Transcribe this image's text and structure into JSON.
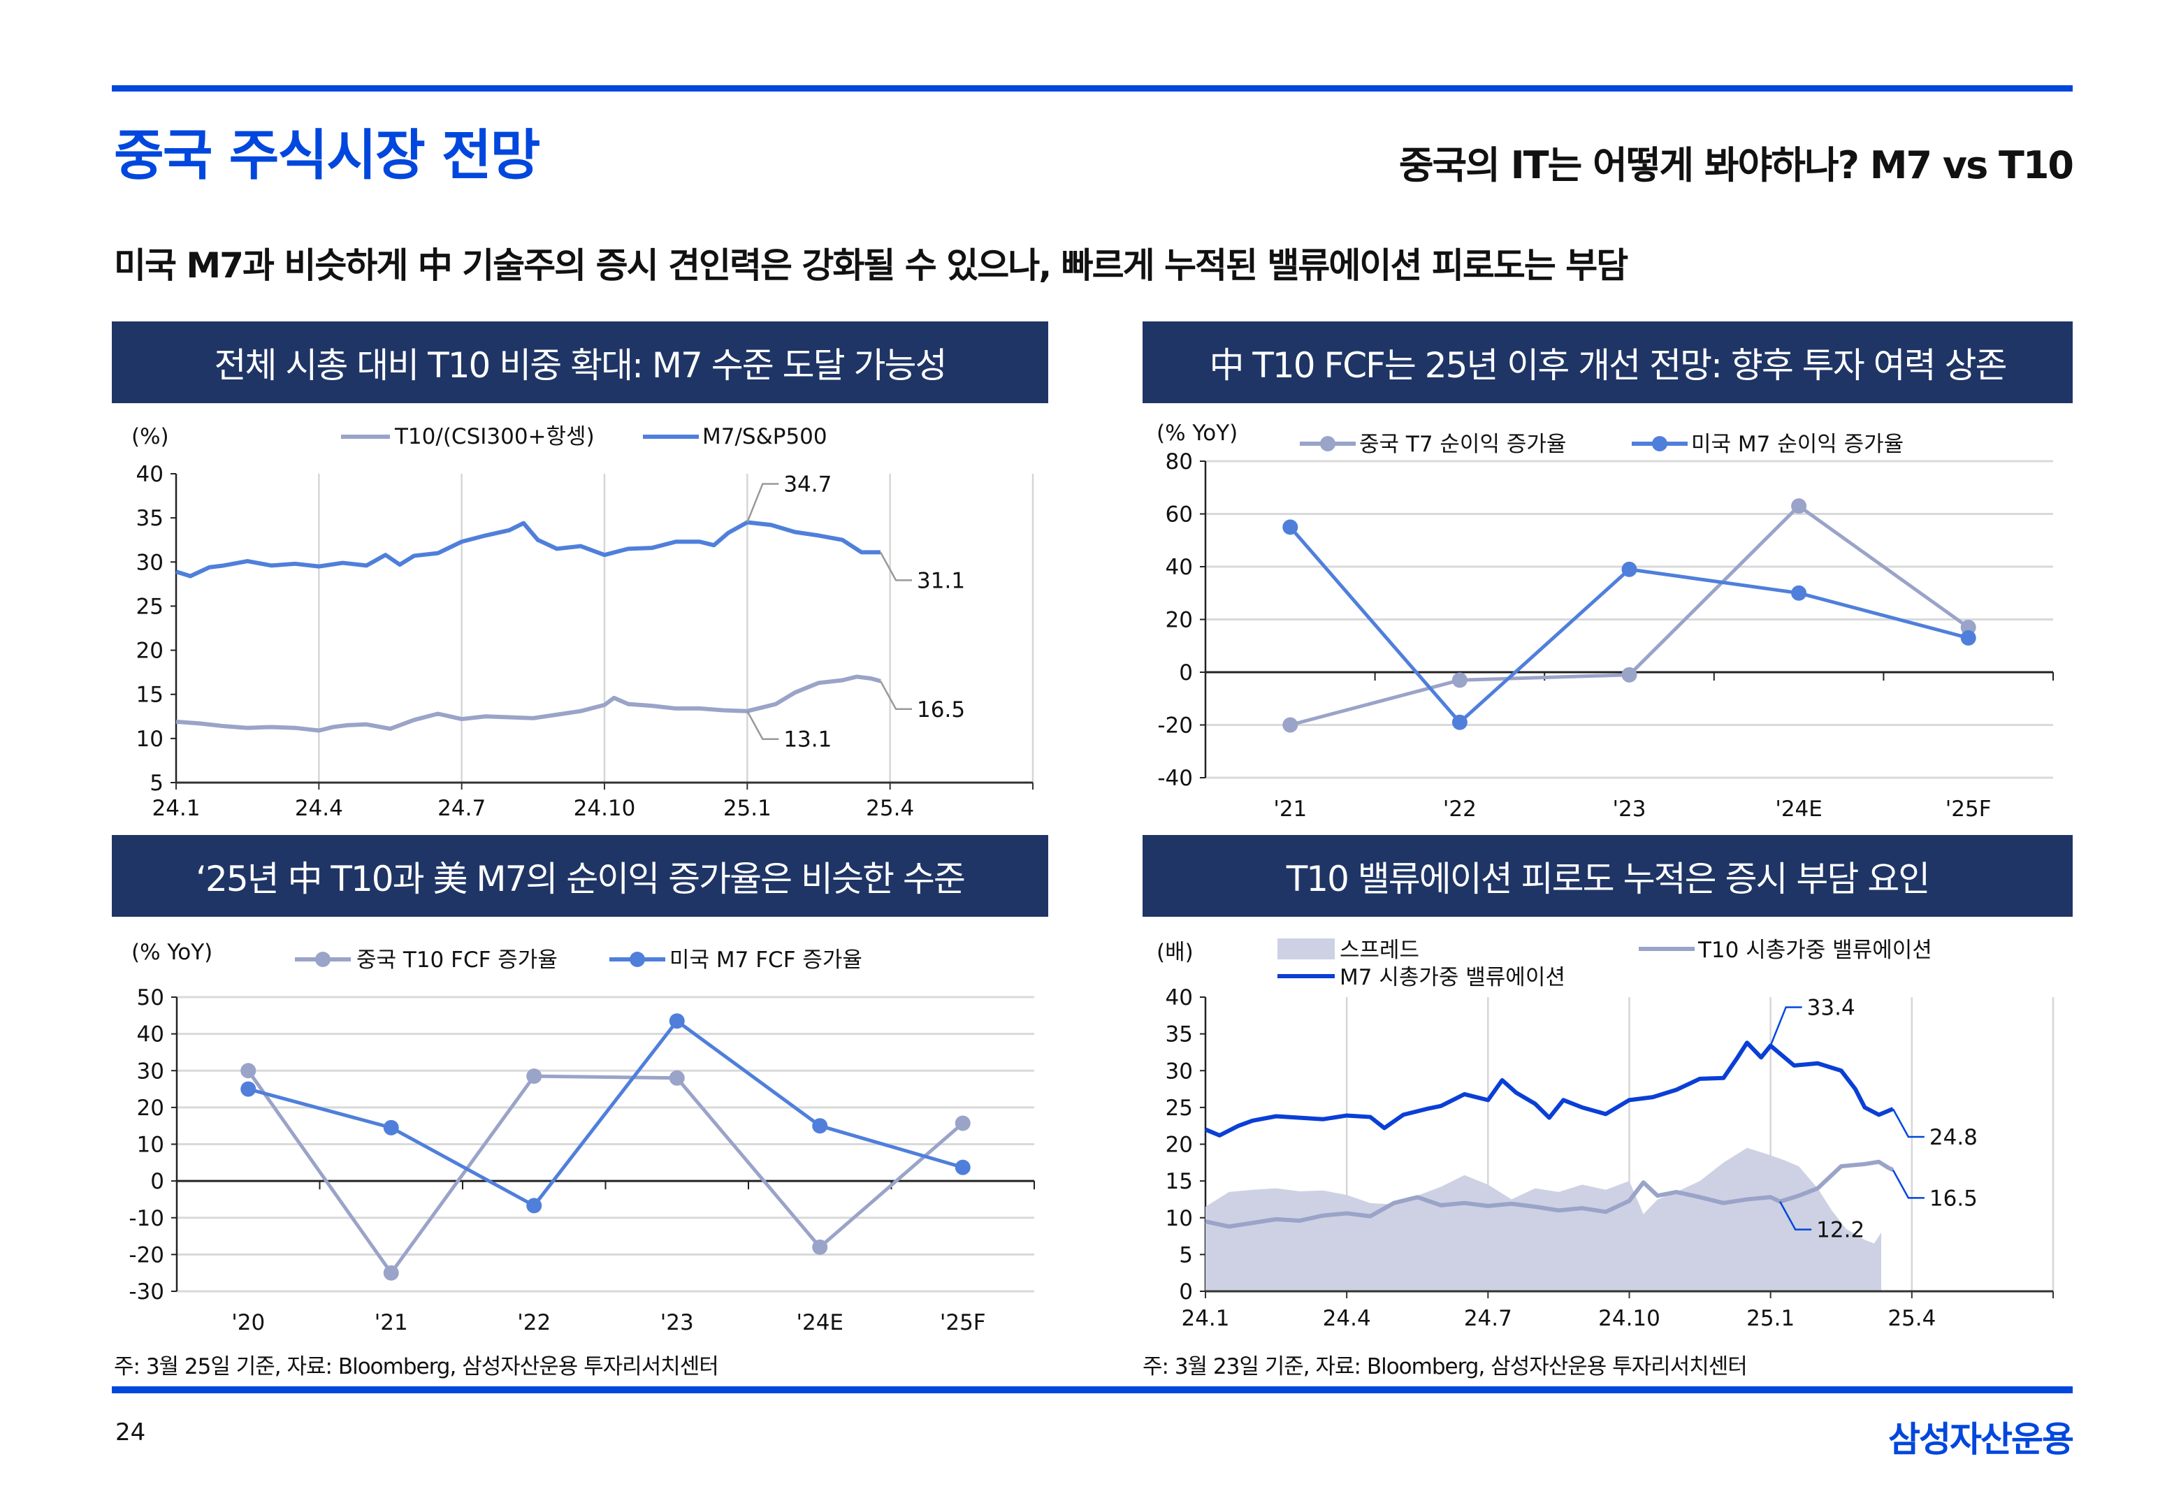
{
  "header": {
    "title": "중국 주식시장 전망",
    "subtitle": "중국의 IT는 어떻게 봐야하나? M7 vs T10",
    "headline": "미국 M7과 비슷하게 中 기술주의 증시 견인력은 강화될 수 있으나, 빠르게 누적된 밸류에이션 피로도는 부담"
  },
  "sections": {
    "top_left": "전체 시총 대비 T10 비중 확대: M7 수준 도달 가능성",
    "top_right": "中 T10 FCF는 25년 이후 개선 전망: 향후 투자 여력 상존",
    "bottom_left": "‘25년 中 T10과 美 M7의 순이익 증가율은 비슷한 수준",
    "bottom_right": "T10 밸류에이션 피로도 누적은 증시 부담 요인"
  },
  "footer": {
    "note_left": "주: 3월 25일 기준, 자료: Bloomberg, 삼성자산운용 투자리서치센터",
    "note_right": "주: 3월 23일 기준, 자료: Bloomberg, 삼성자산운용 투자리서치센터",
    "page_number": "24",
    "brand": "삼성자산운용"
  },
  "colors": {
    "brand_blue": "#0047DD",
    "section_navy": "#1F3566",
    "series_blue": "#4F7FDB",
    "series_gray": "#9AA3C8",
    "m7_dark_blue": "#0A3FD6",
    "spread_fill": "#CDD1E3"
  },
  "chart_data": [
    {
      "id": "share_of_market_cap",
      "type": "line",
      "unit_label": "(%)",
      "x_ticks": [
        "24.1",
        "24.4",
        "24.7",
        "24.10",
        "25.1",
        "25.4"
      ],
      "x_range": [
        "2024-01",
        "2025-06"
      ],
      "ylim": [
        5,
        40
      ],
      "y_ticks": [
        5,
        10,
        15,
        20,
        25,
        30,
        35,
        40
      ],
      "grid": "vertical",
      "legend": "top-center",
      "series": [
        {
          "name": "T10/(CSI300+항셍)",
          "color": "gray",
          "x": [
            0,
            0.5,
            1,
            1.5,
            2,
            2.5,
            3,
            3.3,
            3.6,
            4,
            4.5,
            5,
            5.5,
            6,
            6.5,
            7,
            7.5,
            8,
            8.5,
            9,
            9.2,
            9.5,
            10,
            10.5,
            11,
            11.5,
            12,
            12.3,
            12.6,
            13,
            13.5,
            14,
            14.3,
            14.6,
            14.8
          ],
          "values": [
            11.9,
            11.7,
            11.4,
            11.2,
            11.3,
            11.2,
            10.9,
            11.3,
            11.5,
            11.6,
            11.1,
            12.1,
            12.8,
            12.2,
            12.5,
            12.4,
            12.3,
            12.7,
            13.1,
            13.8,
            14.6,
            13.9,
            13.7,
            13.4,
            13.4,
            13.2,
            13.1,
            13.5,
            13.9,
            15.2,
            16.3,
            16.6,
            17.0,
            16.8,
            16.5
          ],
          "annotations": [
            {
              "label": "13.1",
              "x": 12.1
            },
            {
              "label": "16.5",
              "x": 14.8
            }
          ]
        },
        {
          "name": "M7/S&P500",
          "color": "blue",
          "x": [
            0,
            0.3,
            0.7,
            1,
            1.5,
            2,
            2.5,
            3,
            3.5,
            4,
            4.4,
            4.7,
            5,
            5.5,
            6,
            6.5,
            7,
            7.3,
            7.6,
            8,
            8.5,
            9,
            9.5,
            10,
            10.5,
            11,
            11.3,
            11.6,
            12,
            12.5,
            13,
            13.5,
            14,
            14.4,
            14.8
          ],
          "values": [
            28.9,
            28.4,
            29.4,
            29.6,
            30.1,
            29.6,
            29.8,
            29.5,
            29.9,
            29.6,
            30.8,
            29.7,
            30.7,
            31.0,
            32.3,
            33.0,
            33.6,
            34.4,
            32.5,
            31.5,
            31.8,
            30.8,
            31.5,
            31.6,
            32.3,
            32.3,
            31.9,
            33.3,
            34.5,
            34.2,
            33.4,
            33.0,
            32.5,
            31.1,
            31.1
          ],
          "annotations": [
            {
              "label": "34.7",
              "x": 12.2
            },
            {
              "label": "31.1",
              "x": 14.8
            }
          ]
        }
      ]
    },
    {
      "id": "net_income_growth",
      "type": "line",
      "unit_label": "(% YoY)",
      "categories": [
        "'21",
        "'22",
        "'23",
        "'24E",
        "'25F"
      ],
      "ylim": [
        -40,
        80
      ],
      "y_ticks": [
        -40,
        -20,
        0,
        20,
        40,
        60,
        80
      ],
      "grid": "horizontal",
      "legend": "top-center",
      "series": [
        {
          "name": "중국 T7 순이익 증가율",
          "color": "gray",
          "values": [
            -20,
            -3,
            -1,
            63,
            17
          ]
        },
        {
          "name": "미국 M7 순이익 증가율",
          "color": "blue",
          "values": [
            55,
            -19,
            39,
            30,
            13
          ]
        }
      ]
    },
    {
      "id": "fcf_growth",
      "type": "line",
      "unit_label": "(% YoY)",
      "categories": [
        "'20",
        "'21",
        "'22",
        "'23",
        "'24E",
        "'25F"
      ],
      "ylim": [
        -30,
        50
      ],
      "y_ticks": [
        -30,
        -20,
        -10,
        0,
        10,
        20,
        30,
        40,
        50
      ],
      "grid": "horizontal",
      "legend": "top-center",
      "series": [
        {
          "name": "중국 T10 FCF 증가율",
          "color": "gray",
          "values": [
            30,
            -25,
            28.5,
            28,
            -18,
            15.7
          ]
        },
        {
          "name": "미국 M7 FCF 증가율",
          "color": "blue",
          "values": [
            25,
            14.5,
            -6.7,
            43.5,
            15,
            3.7
          ]
        }
      ]
    },
    {
      "id": "valuation",
      "type": "area",
      "unit_label": "(배)",
      "x_ticks": [
        "24.1",
        "24.4",
        "24.7",
        "24.10",
        "25.1",
        "25.4"
      ],
      "x_range": [
        "2024-01",
        "2025-06"
      ],
      "ylim": [
        0,
        40
      ],
      "y_ticks": [
        0,
        5,
        10,
        15,
        20,
        25,
        30,
        35,
        40
      ],
      "grid": "vertical",
      "legend": "top-left",
      "series": [
        {
          "name": "스프레드",
          "kind": "area",
          "x": [
            0,
            0.5,
            1,
            1.5,
            2,
            2.5,
            3,
            3.5,
            4,
            4.5,
            5,
            5.5,
            6,
            6.5,
            7,
            7.5,
            8,
            8.5,
            9,
            9.3,
            9.6,
            10,
            10.5,
            11,
            11.5,
            12,
            12.3,
            12.6,
            13,
            13.3,
            13.6,
            14,
            14.2,
            14.35
          ],
          "values": [
            11.5,
            13.5,
            13.8,
            14.0,
            13.6,
            13.7,
            13.1,
            12.0,
            11.8,
            13.0,
            14.2,
            15.8,
            14.5,
            12.5,
            14.0,
            13.5,
            14.5,
            13.8,
            15.0,
            10.5,
            12.5,
            13.5,
            15.0,
            17.5,
            19.5,
            18.5,
            17.8,
            17.0,
            14.0,
            11.0,
            8.5,
            7.0,
            6.5,
            8.0
          ]
        },
        {
          "name": "T10 시총가중 밸류에이션",
          "kind": "line",
          "color": "gray",
          "x": [
            0,
            0.5,
            1,
            1.5,
            2,
            2.5,
            3,
            3.5,
            4,
            4.5,
            5,
            5.5,
            6,
            6.5,
            7,
            7.5,
            8,
            8.5,
            9,
            9.3,
            9.6,
            10,
            10.5,
            11,
            11.5,
            12,
            12.2,
            12.6,
            13,
            13.5,
            14,
            14.3,
            14.5,
            14.6
          ],
          "values": [
            9.5,
            8.8,
            9.3,
            9.8,
            9.6,
            10.3,
            10.6,
            10.2,
            12.0,
            12.8,
            11.7,
            12.0,
            11.6,
            11.9,
            11.5,
            11.0,
            11.3,
            10.8,
            12.3,
            14.8,
            13.0,
            13.5,
            12.8,
            12.0,
            12.5,
            12.8,
            12.2,
            13.0,
            14.0,
            17.0,
            17.3,
            17.6,
            16.8,
            16.5
          ],
          "annotations": [
            {
              "label": "12.2",
              "x": 12.2
            },
            {
              "label": "16.5",
              "x": 14.6
            }
          ]
        },
        {
          "name": "M7 시총가중 밸류에이션",
          "kind": "line",
          "color": "dark-blue",
          "x": [
            0,
            0.3,
            0.7,
            1,
            1.5,
            2,
            2.5,
            3,
            3.5,
            3.8,
            4.2,
            4.7,
            5,
            5.5,
            6,
            6.3,
            6.6,
            7,
            7.3,
            7.6,
            8,
            8.5,
            9,
            9.5,
            10,
            10.5,
            11,
            11.3,
            11.5,
            11.8,
            12,
            12.5,
            13,
            13.5,
            13.8,
            14,
            14.3,
            14.6
          ],
          "values": [
            22.0,
            21.2,
            22.5,
            23.2,
            23.8,
            23.6,
            23.4,
            23.9,
            23.7,
            22.2,
            24.0,
            24.8,
            25.2,
            26.8,
            26.0,
            28.7,
            27.0,
            25.5,
            23.6,
            26.0,
            25.0,
            24.1,
            26.0,
            26.4,
            27.4,
            28.9,
            29.0,
            31.8,
            33.8,
            31.8,
            33.4,
            30.7,
            31.0,
            30.0,
            27.5,
            25.0,
            24.0,
            24.8
          ],
          "annotations": [
            {
              "label": "33.4",
              "x": 12.0
            },
            {
              "label": "24.8",
              "x": 14.6
            }
          ]
        }
      ]
    }
  ]
}
